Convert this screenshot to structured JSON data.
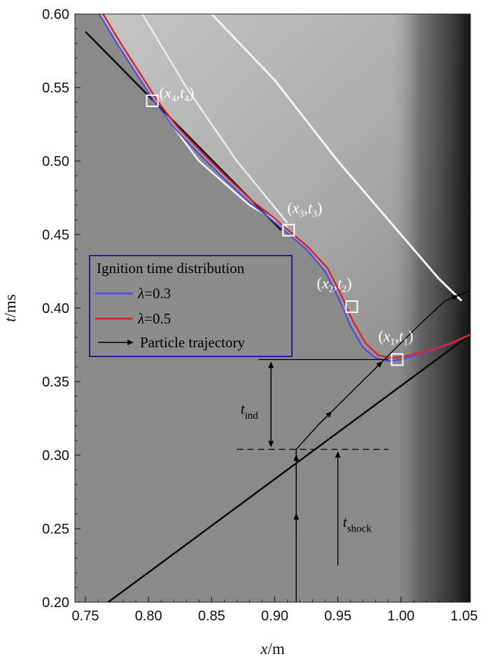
{
  "chart_data": {
    "type": "line",
    "title": "",
    "xlabel": {
      "symbol": "x",
      "unit": "/m"
    },
    "ylabel": {
      "symbol": "t",
      "unit": "/ms"
    },
    "xlim": [
      0.75,
      1.055
    ],
    "ylim": [
      0.2,
      0.6
    ],
    "x_ticks": [
      "0.75",
      "0.80",
      "0.85",
      "0.90",
      "0.95",
      "1.00",
      "1.05"
    ],
    "y_ticks": [
      "0.20",
      "0.25",
      "0.30",
      "0.35",
      "0.40",
      "0.45",
      "0.50",
      "0.55",
      "0.60"
    ],
    "x_tick_values": [
      0.75,
      0.8,
      0.85,
      0.9,
      0.95,
      1.0,
      1.05
    ],
    "y_tick_values": [
      0.2,
      0.25,
      0.3,
      0.35,
      0.4,
      0.45,
      0.5,
      0.55,
      0.6
    ],
    "background": "gray schlieren field",
    "legend": {
      "title": "Ignition time distribution",
      "placement": "center-left",
      "entries": [
        {
          "label": "λ=0.3",
          "symbol": "λ",
          "value_text": "=0.3",
          "color": "#5b4fe0"
        },
        {
          "label": "λ=0.5",
          "symbol": "λ",
          "value_text": "=0.5",
          "color": "#d62828"
        },
        {
          "label": "Particle trajectory",
          "color": "#000000"
        }
      ]
    },
    "series": [
      {
        "name": "λ=0.3",
        "color": "#5b4fe0",
        "x": [
          0.761,
          0.775,
          0.79,
          0.805,
          0.82,
          0.84,
          0.86,
          0.88,
          0.895,
          0.91,
          0.925,
          0.94,
          0.95,
          0.96,
          0.97,
          0.98,
          0.99,
          1.0,
          1.02,
          1.04,
          1.055
        ],
        "y": [
          0.6,
          0.58,
          0.56,
          0.54,
          0.523,
          0.505,
          0.488,
          0.472,
          0.462,
          0.451,
          0.44,
          0.425,
          0.408,
          0.388,
          0.373,
          0.366,
          0.364,
          0.365,
          0.37,
          0.376,
          0.382
        ]
      },
      {
        "name": "λ=0.5",
        "color": "#d62828",
        "x": [
          0.764,
          0.778,
          0.793,
          0.807,
          0.822,
          0.842,
          0.862,
          0.882,
          0.897,
          0.912,
          0.927,
          0.942,
          0.952,
          0.962,
          0.972,
          0.982,
          0.992,
          1.002,
          1.022,
          1.042,
          1.055
        ],
        "y": [
          0.6,
          0.58,
          0.56,
          0.541,
          0.524,
          0.506,
          0.489,
          0.473,
          0.463,
          0.452,
          0.441,
          0.427,
          0.41,
          0.391,
          0.376,
          0.368,
          0.366,
          0.367,
          0.371,
          0.377,
          0.382
        ]
      }
    ],
    "shock_lines": [
      {
        "x": [
          0.768,
          1.055
        ],
        "y": [
          0.2,
          0.382
        ]
      },
      {
        "x": [
          0.75,
          0.905
        ],
        "y": [
          0.588,
          0.453
        ]
      }
    ],
    "trajectory": {
      "x": [
        0.917,
        0.917,
        0.935,
        0.955,
        0.975,
        0.995,
        1.015,
        1.035,
        1.055
      ],
      "y": [
        0.2,
        0.304,
        0.321,
        0.338,
        0.355,
        0.372,
        0.389,
        0.405,
        0.412
      ]
    },
    "points": [
      {
        "id": "1",
        "x": 0.997,
        "y": 0.365,
        "var": "x",
        "var2": "t",
        "sub": "1"
      },
      {
        "id": "2",
        "x": 0.961,
        "y": 0.401,
        "var": "x",
        "var2": "t",
        "sub": "2"
      },
      {
        "id": "3",
        "x": 0.911,
        "y": 0.453,
        "var": "x",
        "var2": "t",
        "sub": "3"
      },
      {
        "id": "4",
        "x": 0.803,
        "y": 0.541,
        "var": "x",
        "var2": "t",
        "sub": "4"
      }
    ],
    "annotations": {
      "t_ind": {
        "symbol": "t",
        "sub": "ind",
        "from": 0.304,
        "to": 0.365
      },
      "t_shock": {
        "symbol": "t",
        "sub": "shock",
        "from": 0.2,
        "to": 0.304
      },
      "ind_line_y": 0.365,
      "shock_line_y": 0.304
    }
  }
}
